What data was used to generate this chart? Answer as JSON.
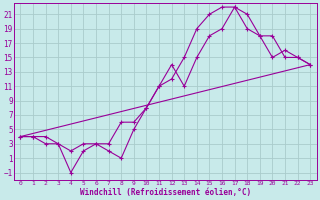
{
  "xlabel": "Windchill (Refroidissement éolien,°C)",
  "bg_color": "#c8eaea",
  "grid_color": "#aacccc",
  "line_color": "#990099",
  "xlim": [
    -0.5,
    23.5
  ],
  "ylim": [
    -2,
    22.5
  ],
  "xticks": [
    0,
    1,
    2,
    3,
    4,
    5,
    6,
    7,
    8,
    9,
    10,
    11,
    12,
    13,
    14,
    15,
    16,
    17,
    18,
    19,
    20,
    21,
    22,
    23
  ],
  "yticks": [
    -1,
    1,
    3,
    5,
    7,
    9,
    11,
    13,
    15,
    17,
    19,
    21
  ],
  "line1_x": [
    0,
    1,
    2,
    3,
    4,
    5,
    6,
    7,
    8,
    9,
    10,
    11,
    12,
    13,
    14,
    15,
    16,
    17,
    18,
    19,
    20,
    21,
    22,
    23
  ],
  "line1_y": [
    4,
    4,
    3,
    3,
    -1,
    2,
    3,
    2,
    1,
    5,
    8,
    11,
    12,
    15,
    19,
    21,
    22,
    22,
    21,
    18,
    15,
    16,
    15,
    14
  ],
  "line2_x": [
    0,
    1,
    2,
    3,
    4,
    5,
    6,
    7,
    8,
    9,
    10,
    11,
    12,
    13,
    14,
    15,
    16,
    17,
    18,
    19,
    20,
    21,
    22,
    23
  ],
  "line2_y": [
    4,
    4,
    4,
    3,
    2,
    3,
    3,
    3,
    6,
    6,
    8,
    11,
    14,
    11,
    15,
    18,
    19,
    22,
    19,
    18,
    18,
    15,
    15,
    14
  ],
  "line3_x": [
    0,
    23
  ],
  "line3_y": [
    4,
    14
  ]
}
